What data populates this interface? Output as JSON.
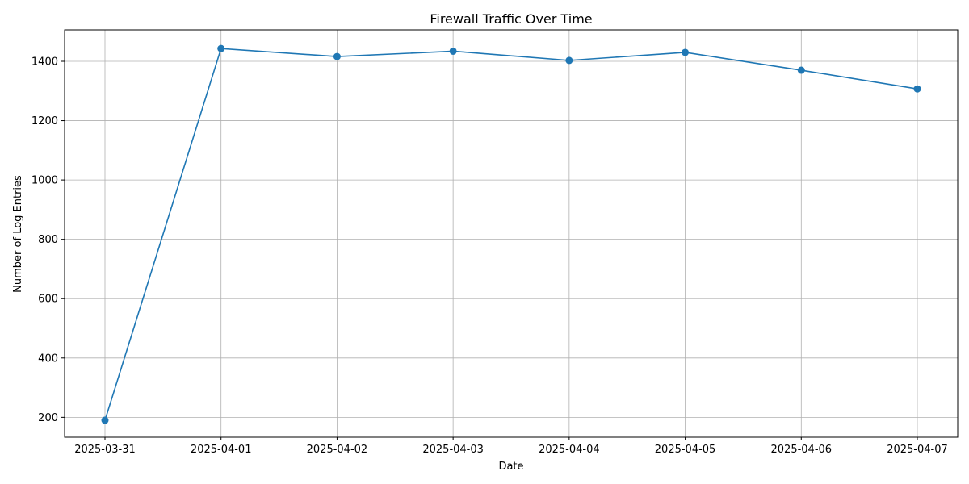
{
  "chart_data": {
    "type": "line",
    "title": "Firewall Traffic Over Time",
    "xlabel": "Date",
    "ylabel": "Number of Log Entries",
    "x": [
      "2025-03-31",
      "2025-04-01",
      "2025-04-02",
      "2025-04-03",
      "2025-04-04",
      "2025-04-05",
      "2025-04-06",
      "2025-04-07"
    ],
    "series": [
      {
        "values": [
          190,
          1443,
          1416,
          1434,
          1403,
          1430,
          1370,
          1307
        ]
      }
    ],
    "yticks": [
      200,
      400,
      600,
      800,
      1000,
      1200,
      1400
    ],
    "ylim": [
      133,
      1506
    ],
    "grid": true,
    "legend": "none",
    "color": "#1f77b4"
  }
}
